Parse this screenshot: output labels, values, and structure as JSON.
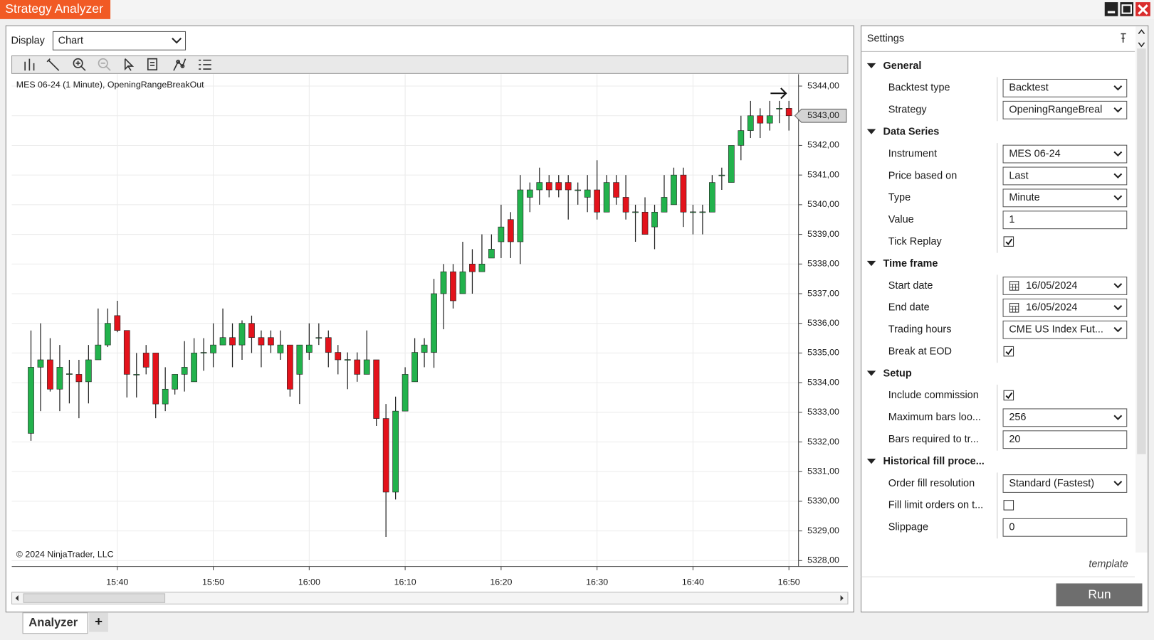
{
  "title": "Strategy Analyzer",
  "display": {
    "label": "Display",
    "value": "Chart"
  },
  "tabs": [
    "Analyzer",
    "+"
  ],
  "chart_data": {
    "type": "candlestick",
    "title": "MES 06-24 (1 Minute), OpeningRangeBreakOut",
    "copyright": "© 2024 NinjaTrader, LLC",
    "up_color": "#22b24c",
    "down_color": "#e3121b",
    "grid": true,
    "x": [
      "15:31",
      "15:32",
      "15:33",
      "15:34",
      "15:35",
      "15:36",
      "15:37",
      "15:38",
      "15:39",
      "15:40",
      "15:41",
      "15:42",
      "15:43",
      "15:44",
      "15:45",
      "15:46",
      "15:47",
      "15:48",
      "15:49",
      "15:50",
      "15:51",
      "15:52",
      "15:53",
      "15:54",
      "15:55",
      "15:56",
      "15:57",
      "15:58",
      "15:59",
      "16:00",
      "16:01",
      "16:02",
      "16:03",
      "16:04",
      "16:05",
      "16:06",
      "16:07",
      "16:08",
      "16:09",
      "16:10",
      "16:11",
      "16:12",
      "16:13",
      "16:14",
      "16:15",
      "16:16",
      "16:17",
      "16:18",
      "16:19",
      "16:20",
      "16:21",
      "16:22",
      "16:23",
      "16:24",
      "16:25",
      "16:26",
      "16:27",
      "16:28",
      "16:29",
      "16:30",
      "16:31",
      "16:32",
      "16:33",
      "16:34",
      "16:35",
      "16:36",
      "16:37",
      "16:38",
      "16:39",
      "16:40",
      "16:41",
      "16:42",
      "16:43",
      "16:44",
      "16:45",
      "16:46",
      "16:47",
      "16:48",
      "16:49",
      "16:50"
    ],
    "open": [
      5332.29,
      5334.52,
      5334.77,
      5333.78,
      5334.28,
      5334.28,
      5334.03,
      5334.77,
      5335.27,
      5336.26,
      5335.76,
      5334.28,
      5335.0,
      5335.0,
      5333.28,
      5333.78,
      5334.28,
      5334.03,
      5335.0,
      5335.0,
      5335.27,
      5335.52,
      5335.27,
      5336.0,
      5335.52,
      5335.52,
      5335.0,
      5335.27,
      5334.28,
      5335.02,
      5335.5,
      5335.52,
      5335.02,
      5334.77,
      5334.77,
      5334.28,
      5334.77,
      5332.79,
      5330.31,
      5333.04,
      5334.03,
      5335.02,
      5335.02,
      5337.0,
      5337.74,
      5337.0,
      5338.0,
      5337.74,
      5338.2,
      5338.75,
      5339.5,
      5338.75,
      5340.25,
      5340.5,
      5340.75,
      5340.75,
      5340.75,
      5340.5,
      5340.25,
      5340.5,
      5339.75,
      5340.75,
      5340.25,
      5339.75,
      5339.75,
      5339.25,
      5339.75,
      5340.0,
      5341.0,
      5339.75,
      5339.75,
      5339.75,
      5341.0,
      5340.75,
      5342.0,
      5342.5,
      5343.0,
      5342.75,
      5343.25,
      5343.25
    ],
    "high": [
      5335.76,
      5336.0,
      5335.5,
      5335.27,
      5334.77,
      5334.77,
      5335.27,
      5336.5,
      5336.5,
      5336.76,
      5335.76,
      5335.0,
      5335.27,
      5335.0,
      5334.52,
      5334.28,
      5335.4,
      5335.5,
      5335.5,
      5336.0,
      5336.5,
      5336.0,
      5336.1,
      5336.26,
      5335.76,
      5335.76,
      5335.76,
      5335.27,
      5335.27,
      5336.0,
      5336.0,
      5335.76,
      5335.27,
      5335.02,
      5335.02,
      5335.76,
      5334.77,
      5333.28,
      5333.53,
      5334.52,
      5335.5,
      5335.5,
      5337.5,
      5338.0,
      5338.0,
      5338.75,
      5338.5,
      5339.0,
      5339.0,
      5340.0,
      5339.75,
      5341.0,
      5340.75,
      5341.25,
      5341.0,
      5341.0,
      5341.0,
      5340.75,
      5341.0,
      5341.5,
      5341.0,
      5341.0,
      5341.0,
      5340.0,
      5340.25,
      5340.0,
      5341.0,
      5341.25,
      5341.25,
      5340.0,
      5340.0,
      5341.0,
      5341.25,
      5342.0,
      5343.0,
      5343.5,
      5343.25,
      5343.5,
      5343.5,
      5343.5
    ],
    "low": [
      5332.04,
      5333.04,
      5333.7,
      5333.04,
      5333.3,
      5332.8,
      5333.3,
      5334.77,
      5335.2,
      5335.7,
      5333.5,
      5333.5,
      5334.28,
      5332.8,
      5333.04,
      5333.6,
      5333.7,
      5334.03,
      5334.4,
      5334.52,
      5335.27,
      5334.52,
      5334.77,
      5335.0,
      5334.52,
      5335.0,
      5334.77,
      5333.53,
      5333.28,
      5334.77,
      5335.27,
      5334.52,
      5334.28,
      5333.78,
      5334.03,
      5334.28,
      5332.54,
      5328.8,
      5330.06,
      5333.04,
      5334.03,
      5334.52,
      5334.5,
      5335.8,
      5336.5,
      5337.0,
      5337.0,
      5337.74,
      5338.2,
      5338.2,
      5338.2,
      5338.0,
      5339.75,
      5340.0,
      5340.25,
      5340.25,
      5339.5,
      5340.0,
      5339.75,
      5339.5,
      5339.75,
      5340.0,
      5339.5,
      5338.75,
      5339.0,
      5338.5,
      5339.75,
      5340.0,
      5339.25,
      5339.0,
      5339.0,
      5339.75,
      5340.5,
      5340.75,
      5341.5,
      5342.25,
      5342.25,
      5342.5,
      5342.75,
      5342.5
    ],
    "close": [
      5334.52,
      5334.77,
      5333.78,
      5334.52,
      5334.3,
      5334.03,
      5334.77,
      5335.27,
      5336.0,
      5335.76,
      5334.28,
      5334.28,
      5334.52,
      5333.28,
      5333.78,
      5334.28,
      5334.52,
      5335.0,
      5335.02,
      5335.27,
      5335.52,
      5335.27,
      5336.0,
      5335.52,
      5335.27,
      5335.27,
      5335.27,
      5333.78,
      5335.27,
      5335.27,
      5335.52,
      5335.02,
      5334.77,
      5334.78,
      5334.28,
      5334.77,
      5332.79,
      5330.31,
      5333.04,
      5334.28,
      5335.02,
      5335.27,
      5337.0,
      5337.74,
      5336.76,
      5337.74,
      5337.74,
      5338.0,
      5338.5,
      5339.25,
      5338.75,
      5340.5,
      5340.5,
      5340.75,
      5340.5,
      5340.5,
      5340.5,
      5340.5,
      5340.5,
      5339.75,
      5340.75,
      5340.25,
      5339.75,
      5339.76,
      5339.0,
      5339.75,
      5340.25,
      5341.0,
      5339.75,
      5339.76,
      5339.76,
      5340.75,
      5341.0,
      5342.0,
      5342.5,
      5343.0,
      5342.75,
      5343.0,
      5343.25,
      5343.0
    ],
    "xlim": [
      "15:29",
      "16:51"
    ],
    "xticks": [
      "15:40",
      "15:50",
      "16:00",
      "16:10",
      "16:20",
      "16:30",
      "16:40",
      "16:50"
    ],
    "ylim": [
      5327.8,
      5344.4
    ],
    "yticks": [
      {
        "value": 5328,
        "label": "5328,00"
      },
      {
        "value": 5329,
        "label": "5329,00"
      },
      {
        "value": 5330,
        "label": "5330,00"
      },
      {
        "value": 5331,
        "label": "5331,00"
      },
      {
        "value": 5332,
        "label": "5332,00"
      },
      {
        "value": 5333,
        "label": "5333,00"
      },
      {
        "value": 5334,
        "label": "5334,00"
      },
      {
        "value": 5335,
        "label": "5335,00"
      },
      {
        "value": 5336,
        "label": "5336,00"
      },
      {
        "value": 5337,
        "label": "5337,00"
      },
      {
        "value": 5338,
        "label": "5338,00"
      },
      {
        "value": 5339,
        "label": "5339,00"
      },
      {
        "value": 5340,
        "label": "5340,00"
      },
      {
        "value": 5341,
        "label": "5341,00"
      },
      {
        "value": 5342,
        "label": "5342,00"
      },
      {
        "value": 5343,
        "label": "5343,00"
      },
      {
        "value": 5344,
        "label": "5344,00"
      }
    ],
    "last_price": {
      "value": 5343,
      "label": "5343,00"
    }
  },
  "settings": {
    "title": "Settings",
    "template": "template",
    "run": "Run",
    "sections": [
      {
        "name": "General",
        "rows": [
          {
            "label": "Backtest type",
            "kind": "select",
            "value": "Backtest"
          },
          {
            "label": "Strategy",
            "kind": "select",
            "value": "OpeningRangeBreal"
          }
        ]
      },
      {
        "name": "Data Series",
        "rows": [
          {
            "label": "Instrument",
            "kind": "select",
            "value": "MES 06-24"
          },
          {
            "label": "Price based on",
            "kind": "select",
            "value": "Last"
          },
          {
            "label": "Type",
            "kind": "select",
            "value": "Minute"
          },
          {
            "label": "Value",
            "kind": "input",
            "value": "1"
          },
          {
            "label": "Tick Replay",
            "kind": "checkbox",
            "value": true
          }
        ]
      },
      {
        "name": "Time frame",
        "rows": [
          {
            "label": "Start date",
            "kind": "date",
            "value": "16/05/2024"
          },
          {
            "label": "End date",
            "kind": "date",
            "value": "16/05/2024"
          },
          {
            "label": "Trading hours",
            "kind": "select",
            "value": "CME US Index Fut..."
          },
          {
            "label": "Break at EOD",
            "kind": "checkbox",
            "value": true
          }
        ]
      },
      {
        "name": "Setup",
        "rows": [
          {
            "label": "Include commission",
            "kind": "checkbox",
            "value": true
          },
          {
            "label": "Maximum bars loo...",
            "kind": "select",
            "value": "256"
          },
          {
            "label": "Bars required to tr...",
            "kind": "input",
            "value": "20"
          }
        ]
      },
      {
        "name": "Historical fill proce...",
        "rows": [
          {
            "label": "Order fill resolution",
            "kind": "select",
            "value": "Standard (Fastest)"
          },
          {
            "label": "Fill limit orders on t...",
            "kind": "checkbox",
            "value": false
          },
          {
            "label": "Slippage",
            "kind": "input",
            "value": "0"
          }
        ]
      }
    ]
  }
}
